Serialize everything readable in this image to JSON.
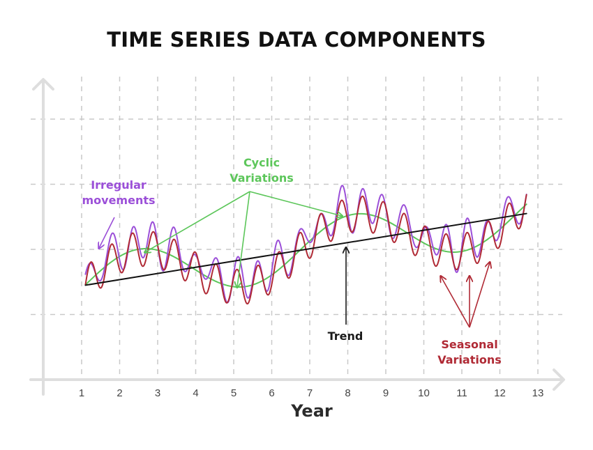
{
  "title": "TIME SERIES DATA COMPONENTS",
  "colors": {
    "irregular": "#9b4fd8",
    "cyclic": "#5cc65a",
    "trend": "#111111",
    "seasonal": "#b02a35",
    "grid": "#c9c9c9",
    "axis": "#dedede"
  },
  "annotations": {
    "irregular": [
      "Irregular",
      "movements"
    ],
    "cyclic": [
      "Cyclic",
      "Variations"
    ],
    "trend": "Trend",
    "seasonal": [
      "Seasonal",
      "Variations"
    ]
  },
  "chart_data": {
    "type": "line",
    "title": "TIME SERIES DATA COMPONENTS",
    "xlabel": "Year",
    "ylabel": "",
    "x_ticks": [
      1,
      2,
      3,
      4,
      5,
      6,
      7,
      8,
      9,
      10,
      11,
      12,
      13
    ],
    "xlim": [
      0.2,
      13.4
    ],
    "ylim": [
      0,
      5
    ],
    "grid": true,
    "series": [
      {
        "name": "Trend",
        "kind": "linear",
        "start": [
          1.1,
          1.45
        ],
        "end": [
          12.7,
          2.55
        ]
      },
      {
        "name": "Cyclic Variations",
        "kind": "sinusoid",
        "x_range": [
          1.1,
          12.7
        ],
        "baseline": [
          1.45,
          2.55
        ],
        "amplitude": 0.42,
        "period": 5.65,
        "phase_peak_x": 2.5
      },
      {
        "name": "Seasonal Variations",
        "kind": "sinusoid",
        "x_range": [
          1.1,
          12.7
        ],
        "amplitude": 0.27,
        "period": 0.55
      },
      {
        "name": "Irregular movements",
        "kind": "noisy",
        "x_range": [
          1.1,
          12.7
        ],
        "offset": 0.1
      }
    ]
  }
}
